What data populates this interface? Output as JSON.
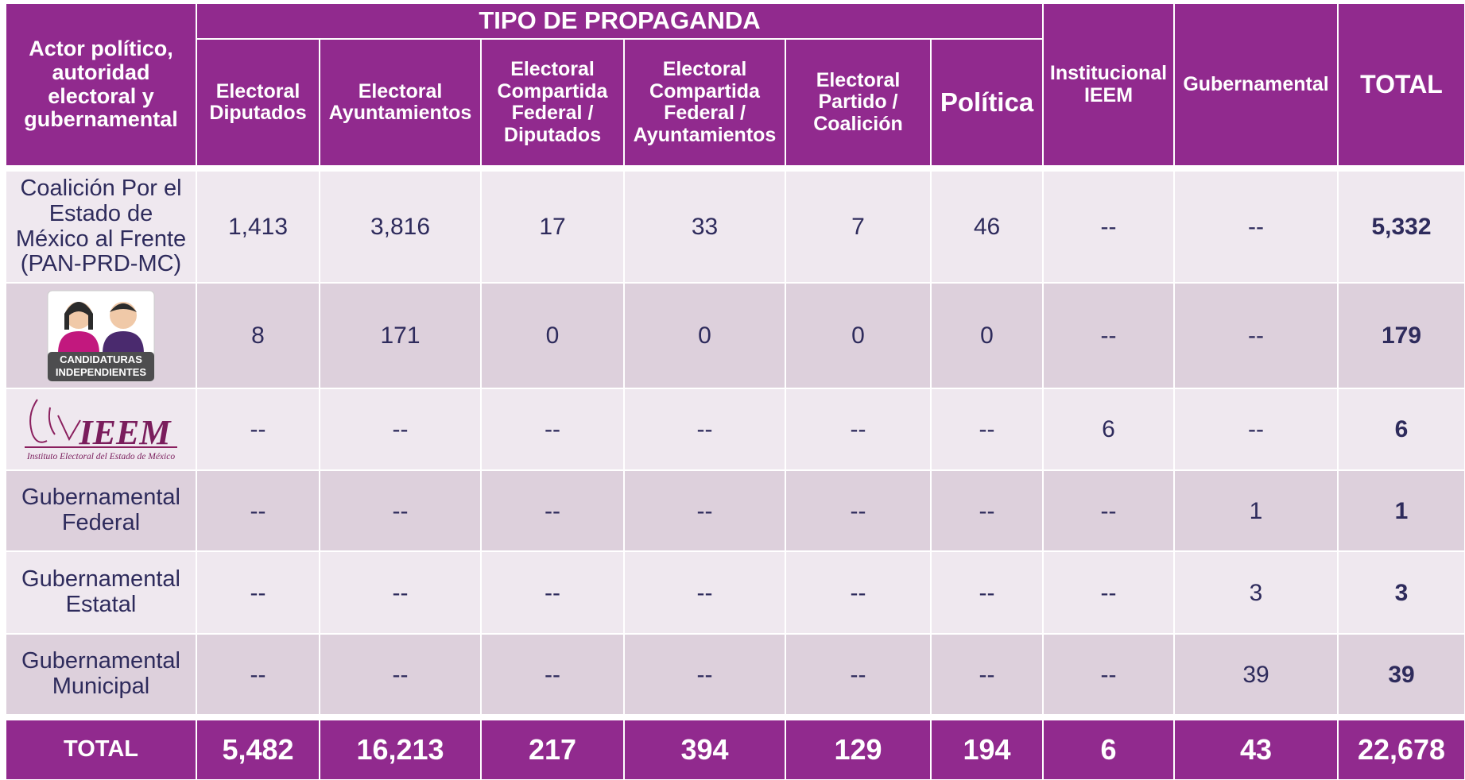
{
  "header": {
    "actor": "Actor político, autoridad electoral y gubernamental",
    "group": "TIPO DE PROPAGANDA",
    "columns": [
      "Electoral Diputados",
      "Electoral Ayuntamientos",
      "Electoral Compartida Federal / Diputados",
      "Electoral Compartida Federal / Ayuntamientos",
      "Electoral Partido / Coalición",
      "Política",
      "Institucional IEEM",
      "Gubernamental",
      "TOTAL"
    ]
  },
  "rows": [
    {
      "label": "Coalición Por el Estado de México al Frente (PAN-PRD-MC)",
      "cells": [
        "1,413",
        "3,816",
        "17",
        "33",
        "7",
        "46",
        "--",
        "--",
        "5,332"
      ]
    },
    {
      "logo": {
        "line1": "CANDIDATURAS",
        "line2": "INDEPENDIENTES"
      },
      "cells": [
        "8",
        "171",
        "0",
        "0",
        "0",
        "0",
        "--",
        "--",
        "179"
      ]
    },
    {
      "logo": {
        "name": "IEEM",
        "caption": "Instituto Electoral del Estado de México"
      },
      "cells": [
        "--",
        "--",
        "--",
        "--",
        "--",
        "--",
        "6",
        "--",
        "6"
      ]
    },
    {
      "label": "Gubernamental Federal",
      "cells": [
        "--",
        "--",
        "--",
        "--",
        "--",
        "--",
        "--",
        "1",
        "1"
      ]
    },
    {
      "label": "Gubernamental Estatal",
      "cells": [
        "--",
        "--",
        "--",
        "--",
        "--",
        "--",
        "--",
        "3",
        "3"
      ]
    },
    {
      "label": "Gubernamental Municipal",
      "cells": [
        "--",
        "--",
        "--",
        "--",
        "--",
        "--",
        "--",
        "39",
        "39"
      ]
    }
  ],
  "total": {
    "label": "TOTAL",
    "cells": [
      "5,482",
      "16,213",
      "217",
      "394",
      "129",
      "194",
      "6",
      "43",
      "22,678"
    ]
  }
}
